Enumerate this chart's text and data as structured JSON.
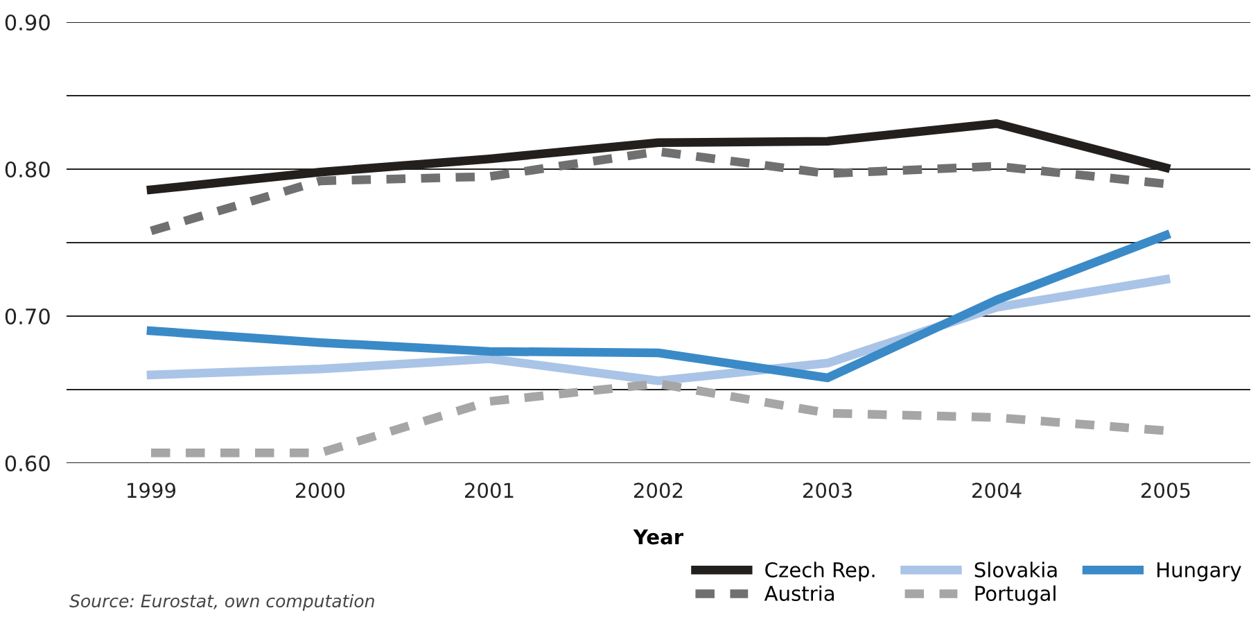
{
  "chart_data": {
    "type": "line",
    "xlabel": "Year",
    "categories": [
      "1999",
      "2000",
      "2001",
      "2002",
      "2003",
      "2004",
      "2005"
    ],
    "series": [
      {
        "name": "Czech Rep.",
        "color": "#231f1c",
        "line_style": "solid",
        "values": [
          0.786,
          0.798,
          0.807,
          0.818,
          0.819,
          0.831,
          0.801
        ]
      },
      {
        "name": "Austria",
        "color": "#707070",
        "line_style": "dashed",
        "values": [
          0.758,
          0.792,
          0.795,
          0.812,
          0.797,
          0.802,
          0.79
        ]
      },
      {
        "name": "Slovakia",
        "color": "#a9c4e6",
        "line_style": "solid",
        "values": [
          0.66,
          0.664,
          0.671,
          0.656,
          0.668,
          0.706,
          0.725
        ]
      },
      {
        "name": "Portugal",
        "color": "#a6a6a6",
        "line_style": "dashed",
        "values": [
          0.607,
          0.607,
          0.642,
          0.654,
          0.634,
          0.631,
          0.622
        ]
      },
      {
        "name": "Hungary",
        "color": "#3a8ac7",
        "line_style": "solid",
        "values": [
          0.69,
          0.682,
          0.676,
          0.675,
          0.658,
          0.711,
          0.755
        ]
      }
    ],
    "ylim": [
      0.6,
      0.9
    ],
    "yticks": [
      {
        "value": 0.6,
        "label": "0.60"
      },
      {
        "value": 0.65,
        "label": null
      },
      {
        "value": 0.7,
        "label": "0.70"
      },
      {
        "value": 0.75,
        "label": null
      },
      {
        "value": 0.8,
        "label": "0.80"
      },
      {
        "value": 0.85,
        "label": null
      },
      {
        "value": 0.9,
        "label": "0.90"
      }
    ],
    "grid": "y",
    "legend": "bottom right",
    "marker": "none",
    "annotations": [
      "Source: Eurostat, own computation"
    ]
  }
}
